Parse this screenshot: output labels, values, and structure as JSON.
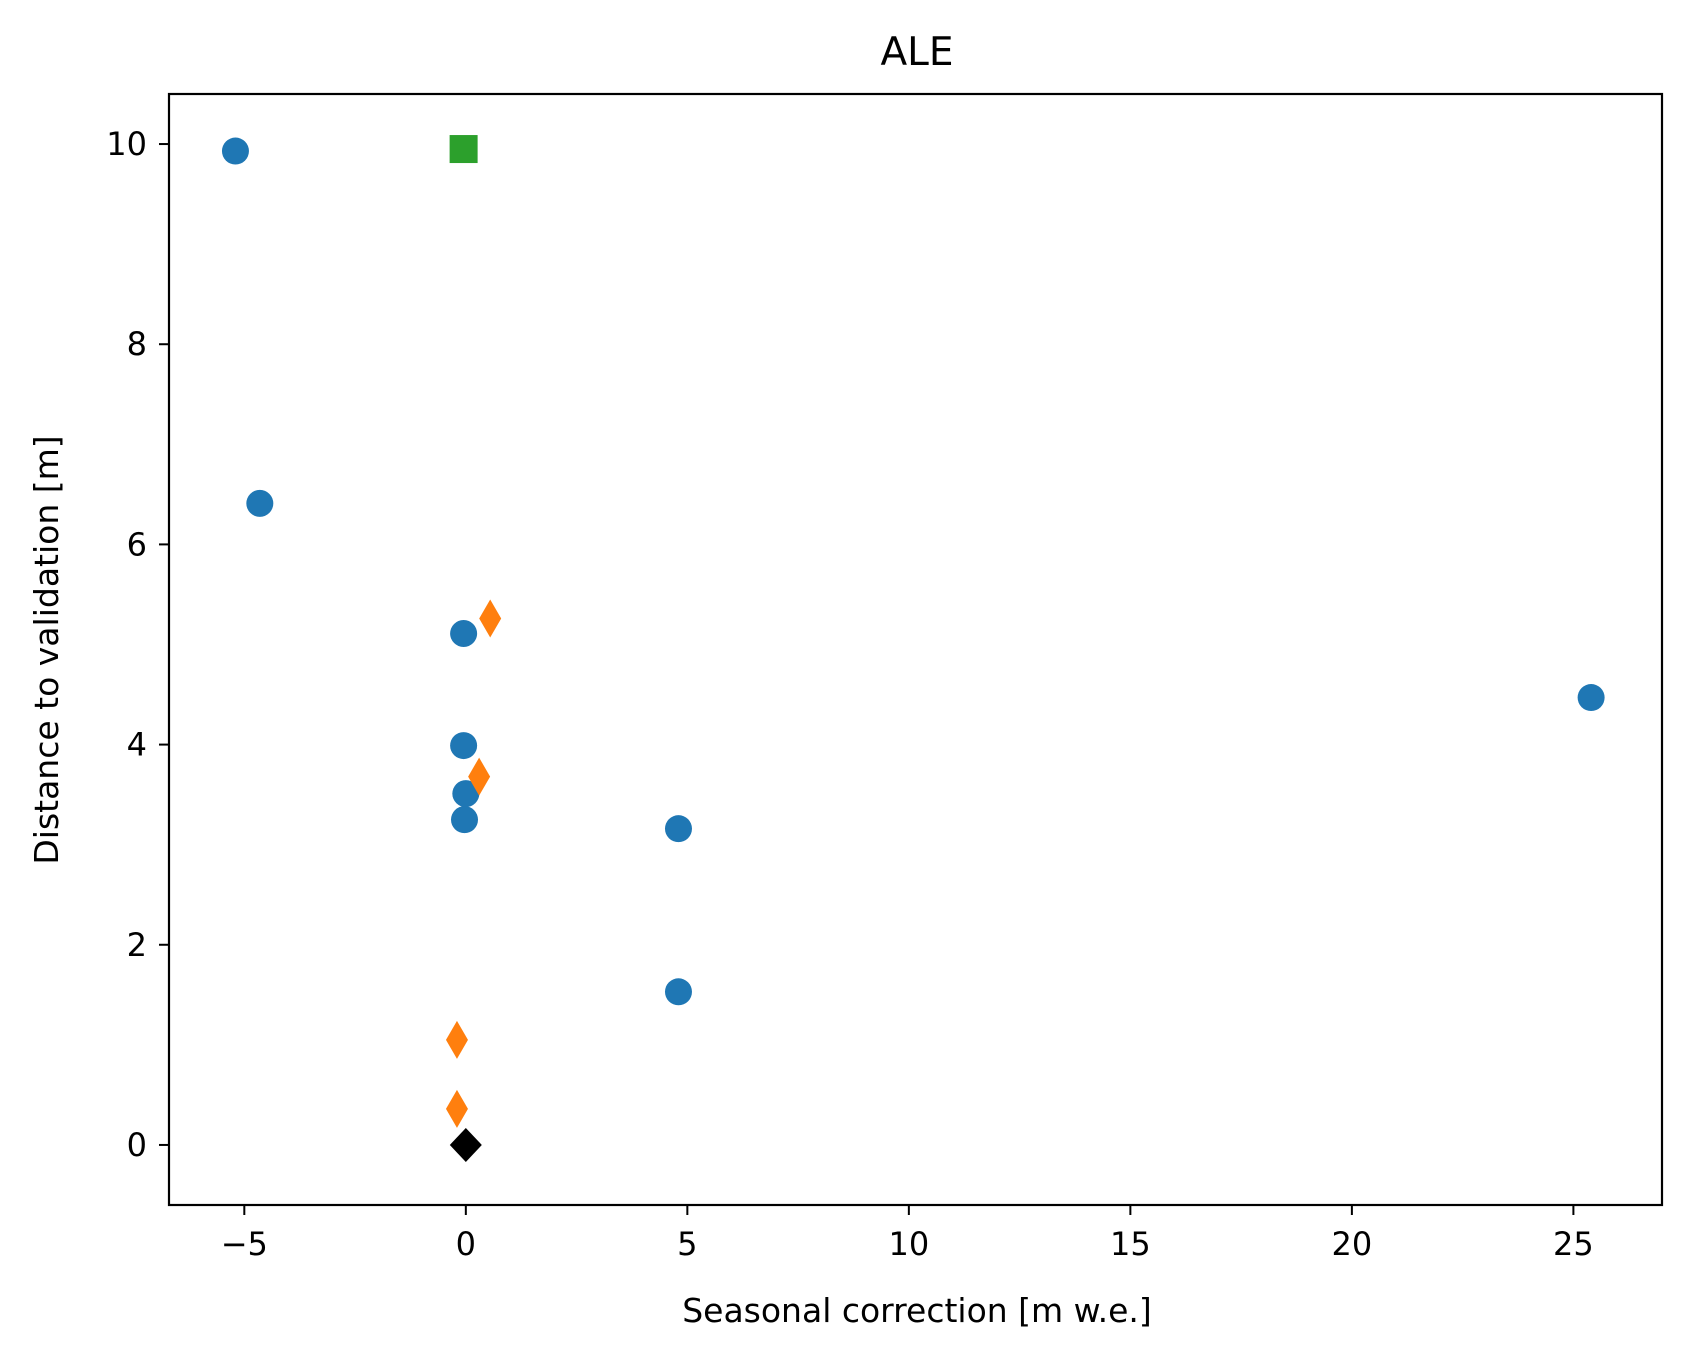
{
  "chart_data": {
    "type": "scatter",
    "title": "ALE",
    "xlabel": "Seasonal correction [m w.e.]",
    "ylabel": "Distance to validation [m]",
    "xlim": [
      -6.7,
      27
    ],
    "ylim": [
      -0.6,
      10.5
    ],
    "xticks": [
      -5,
      0,
      5,
      10,
      15,
      20,
      25
    ],
    "xtick_labels": [
      "−5",
      "0",
      "5",
      "10",
      "15",
      "20",
      "25"
    ],
    "yticks": [
      0,
      2,
      4,
      6,
      8,
      10
    ],
    "ytick_labels": [
      "0",
      "2",
      "4",
      "6",
      "8",
      "10"
    ],
    "grid": false,
    "legend": null,
    "series": [
      {
        "marker": "circle",
        "color": "#1f77b4",
        "points": [
          {
            "x": -5.2,
            "y": 9.93
          },
          {
            "x": -4.65,
            "y": 6.41
          },
          {
            "x": -0.05,
            "y": 5.11
          },
          {
            "x": -0.05,
            "y": 3.99
          },
          {
            "x": 0.0,
            "y": 3.51
          },
          {
            "x": -0.03,
            "y": 3.25
          },
          {
            "x": 4.8,
            "y": 3.16
          },
          {
            "x": 4.8,
            "y": 1.53
          },
          {
            "x": 25.4,
            "y": 4.47
          }
        ]
      },
      {
        "marker": "thin_diamond",
        "color": "#ff7f0e",
        "points": [
          {
            "x": 0.55,
            "y": 5.26
          },
          {
            "x": 0.3,
            "y": 3.68
          },
          {
            "x": -0.2,
            "y": 1.05
          },
          {
            "x": -0.2,
            "y": 0.36
          }
        ]
      },
      {
        "marker": "square",
        "color": "#2ca02c",
        "points": [
          {
            "x": -0.05,
            "y": 9.95
          }
        ]
      },
      {
        "marker": "diamond",
        "color": "#000000",
        "points": [
          {
            "x": 0.0,
            "y": 0.0
          }
        ]
      }
    ]
  }
}
